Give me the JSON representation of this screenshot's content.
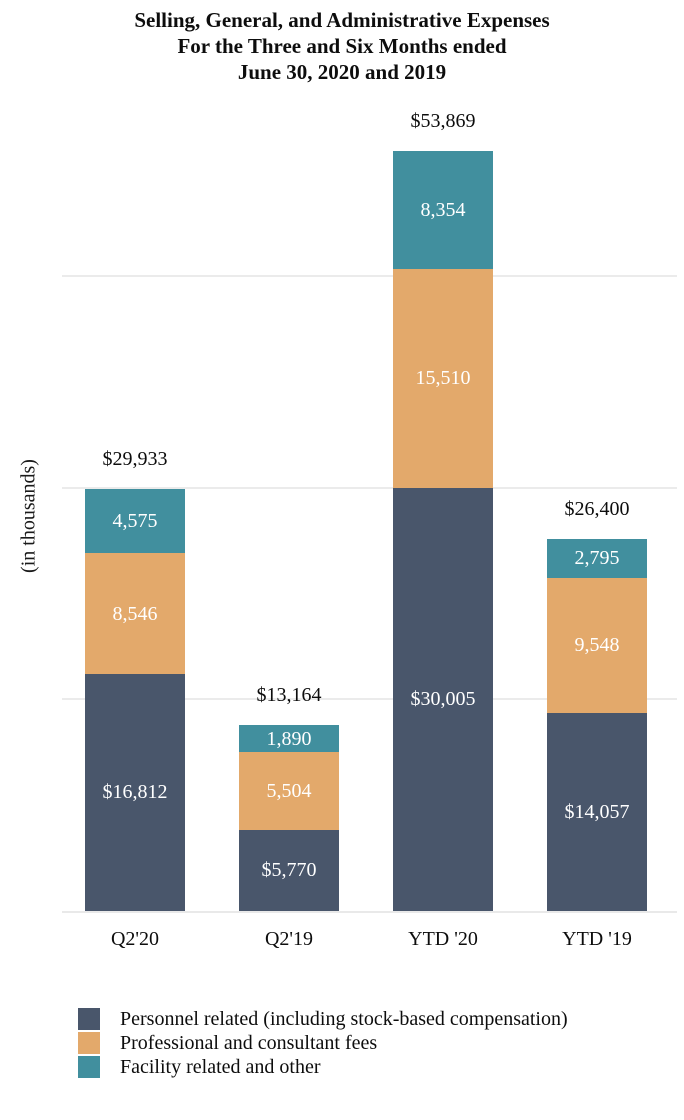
{
  "title": {
    "line1": "Selling, General, and Administrative Expenses",
    "line2": "For the Three and Six Months ended",
    "line3": "June 30, 2020 and 2019"
  },
  "chart_data": {
    "type": "bar",
    "stacked": true,
    "title": "Selling, General, and Administrative Expenses For the Three and Six Months ended June 30, 2020 and 2019",
    "xlabel": "",
    "ylabel": "(in thousands)",
    "categories": [
      "Q2'20",
      "Q2'19",
      "YTD '20",
      "YTD '19"
    ],
    "series": [
      {
        "key": "personnel",
        "name": "Personnel related (including stock-based compensation)",
        "color": "#49566b",
        "values": [
          16812,
          5770,
          30005,
          14057
        ],
        "labels": [
          "$16,812",
          "$5,770",
          "$30,005",
          "$14,057"
        ]
      },
      {
        "key": "professional",
        "name": "Professional and consultant fees",
        "color": "#e3a96b",
        "values": [
          8546,
          5504,
          15510,
          9548
        ],
        "labels": [
          "8,546",
          "5,504",
          "15,510",
          "9,548"
        ]
      },
      {
        "key": "facility",
        "name": "Facility related and other",
        "color": "#418f9e",
        "values": [
          4575,
          1890,
          8354,
          2795
        ],
        "labels": [
          "4,575",
          "1,890",
          "8,354",
          "2,795"
        ]
      }
    ],
    "totals": [
      29933,
      13164,
      53869,
      26400
    ],
    "total_labels": [
      "$29,933",
      "$13,164",
      "$53,869",
      "$26,400"
    ],
    "gridlines": [
      15000,
      30000,
      45000
    ],
    "ylim": [
      0,
      57500
    ],
    "grid": true,
    "legend_position": "bottom"
  },
  "colors": {
    "background": "#ffffff",
    "gridline": "#ebebeb",
    "personnel": "#49566b",
    "professional": "#e3a96b",
    "facility": "#418f9e"
  }
}
